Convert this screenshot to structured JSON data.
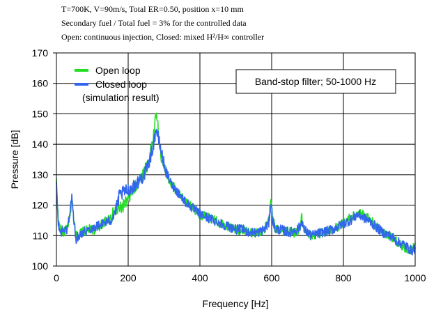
{
  "header": {
    "line1": "T=700K, V=90m/s, Total ER=0.50, position x=10 mm",
    "line2": "Secondary fuel / Total fuel = 3% for the controlled data",
    "line3": "Open:  continuous injection, Closed:  mixed H²/H∞ controller"
  },
  "chart_data": {
    "type": "line",
    "xlabel": "Frequency [Hz]",
    "ylabel": "Pressure [dB]",
    "xlim": [
      0,
      1000
    ],
    "ylim": [
      100,
      170
    ],
    "xticks": [
      "0",
      "200",
      "400",
      "600",
      "800",
      "1000"
    ],
    "yticks": [
      "100",
      "110",
      "120",
      "130",
      "140",
      "150",
      "160",
      "170"
    ],
    "grid": true,
    "legend_position": "top-left",
    "legend_note": "(simulation result)",
    "annotation": "Band-stop filter; 50-1000 Hz",
    "series": [
      {
        "name": "Open loop",
        "color": "#22dd22",
        "x": [
          0,
          5,
          10,
          20,
          30,
          38,
          43,
          48,
          55,
          70,
          90,
          110,
          130,
          150,
          165,
          180,
          195,
          210,
          225,
          240,
          252,
          262,
          270,
          276,
          280,
          284,
          288,
          295,
          305,
          320,
          340,
          360,
          380,
          400,
          420,
          440,
          460,
          480,
          500,
          520,
          540,
          560,
          580,
          592,
          598,
          603,
          610,
          625,
          650,
          670,
          680,
          684,
          690,
          710,
          740,
          770,
          800,
          820,
          840,
          855,
          870,
          890,
          910,
          930,
          950,
          970,
          990,
          1000
        ],
        "y": [
          128,
          115,
          112,
          111,
          112,
          117,
          122,
          116,
          110,
          111,
          112,
          112,
          114,
          116,
          118,
          119,
          121,
          124,
          127,
          130,
          133,
          137,
          142,
          148,
          150,
          144,
          138,
          135,
          131,
          127,
          124,
          121,
          119,
          117,
          116,
          115,
          114,
          113,
          112,
          112,
          111,
          111,
          112,
          115,
          122,
          116,
          112,
          112,
          111,
          111,
          113,
          116,
          111,
          110,
          111,
          112,
          114,
          116,
          117,
          117,
          116,
          113,
          111,
          110,
          108,
          106,
          105,
          107
        ]
      },
      {
        "name": "Closed loop",
        "color": "#3366ee",
        "x": [
          0,
          5,
          10,
          20,
          30,
          38,
          43,
          48,
          55,
          70,
          90,
          110,
          130,
          150,
          165,
          175,
          185,
          200,
          215,
          230,
          245,
          255,
          265,
          272,
          278,
          282,
          288,
          295,
          305,
          320,
          340,
          360,
          380,
          400,
          420,
          440,
          460,
          480,
          500,
          520,
          540,
          560,
          580,
          592,
          598,
          603,
          610,
          625,
          650,
          670,
          680,
          684,
          690,
          710,
          740,
          770,
          800,
          820,
          840,
          855,
          870,
          890,
          910,
          930,
          950,
          970,
          990,
          1000
        ],
        "y": [
          127,
          114,
          111,
          112,
          112,
          118,
          123,
          115,
          109,
          111,
          112,
          113,
          114,
          115,
          118,
          123,
          124,
          125,
          126,
          128,
          130,
          133,
          137,
          141,
          145,
          143,
          140,
          136,
          131,
          127,
          124,
          121,
          119,
          117,
          116,
          115,
          114,
          113,
          112,
          112,
          111,
          111,
          112,
          114,
          121,
          115,
          112,
          112,
          111,
          112,
          113,
          115,
          112,
          110,
          111,
          112,
          114,
          115,
          117,
          116,
          115,
          113,
          111,
          110,
          108,
          107,
          105,
          106
        ]
      }
    ]
  }
}
